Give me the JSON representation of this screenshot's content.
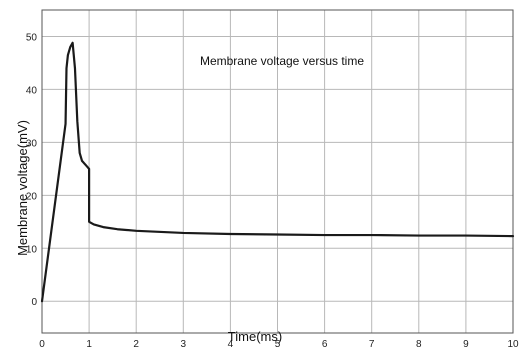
{
  "chart_data": {
    "type": "line",
    "title": "Membrane voltage versus time",
    "xlabel": "Time(ms)",
    "ylabel": "Membrane voltage(mV)",
    "xlim": [
      0,
      10
    ],
    "ylim": [
      -6,
      55
    ],
    "x_ticks": [
      0,
      1,
      2,
      3,
      4,
      5,
      6,
      7,
      8,
      9,
      10
    ],
    "y_ticks": [
      0,
      10,
      20,
      30,
      40,
      50
    ],
    "grid": true,
    "legend": "none",
    "series": [
      {
        "color": "#1a1a1a",
        "x": [
          0,
          0.5,
          0.52,
          0.55,
          0.6,
          0.65,
          0.7,
          0.75,
          0.8,
          0.85,
          0.95,
          1.0,
          1.0,
          1.1,
          1.3,
          1.6,
          2.0,
          3.0,
          4.0,
          5.0,
          6.0,
          7.0,
          8.0,
          9.0,
          10.0
        ],
        "y": [
          0,
          33.5,
          44,
          46.5,
          48,
          48.8,
          44,
          34,
          28,
          26.5,
          25.5,
          25,
          15,
          14.5,
          14,
          13.6,
          13.3,
          12.9,
          12.7,
          12.6,
          12.5,
          12.5,
          12.4,
          12.4,
          12.3
        ]
      }
    ]
  }
}
